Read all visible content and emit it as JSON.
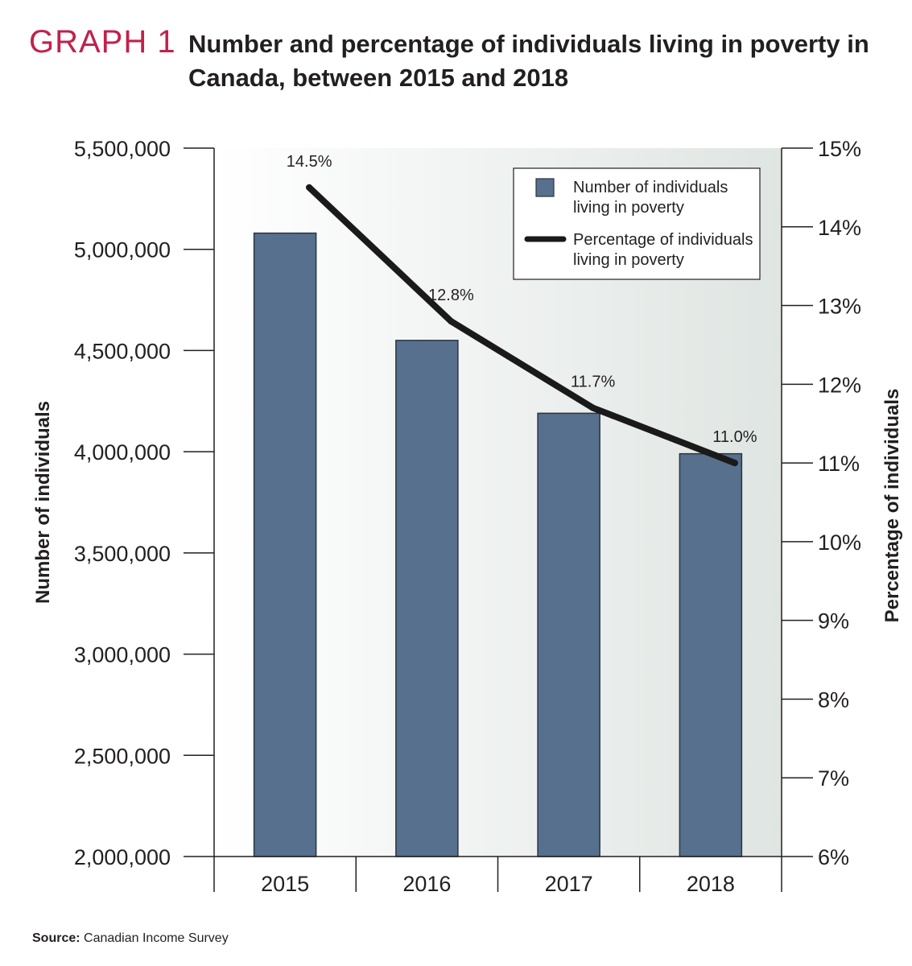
{
  "header": {
    "graph_label": "GRAPH 1",
    "title": "Number and percentage of individuals living in poverty in Canada, between 2015 and 2018"
  },
  "footer": {
    "source_label": "Source:",
    "source_text": "Canadian Income Survey"
  },
  "colors": {
    "graph_label": "#c0224b",
    "bar_fill": "#57708e",
    "bar_stroke": "#2b3440",
    "line": "#1a1a1a",
    "plot_gradient_start": "#ffffff",
    "plot_gradient_end": "#dfe5e2",
    "axis": "#231f20"
  },
  "chart_data": {
    "type": "bar",
    "categories": [
      "2015",
      "2016",
      "2017",
      "2018"
    ],
    "series": [
      {
        "name": "Number of individuals living in poverty",
        "type": "bar",
        "axis": "left",
        "values": [
          5080000,
          4550000,
          4190000,
          3990000
        ]
      },
      {
        "name": "Percentage of individuals living in poverty",
        "type": "line",
        "axis": "right",
        "values": [
          14.5,
          12.8,
          11.7,
          11.0
        ],
        "data_labels": [
          "14.5%",
          "12.8%",
          "11.7%",
          "11.0%"
        ]
      }
    ],
    "ylabel": "Number of individuals",
    "y2label": "Percentage of individuals",
    "ylim": [
      2000000,
      5500000
    ],
    "y2lim": [
      6,
      15
    ],
    "yticks": [
      "2,000,000",
      "2,500,000",
      "3,000,000",
      "3,500,000",
      "4,000,000",
      "4,500,000",
      "5,000,000",
      "5,500,000"
    ],
    "ytick_values": [
      2000000,
      2500000,
      3000000,
      3500000,
      4000000,
      4500000,
      5000000,
      5500000
    ],
    "y2ticks": [
      "6%",
      "7%",
      "8%",
      "9%",
      "10%",
      "11%",
      "12%",
      "13%",
      "14%",
      "15%"
    ],
    "y2tick_values": [
      6,
      7,
      8,
      9,
      10,
      11,
      12,
      13,
      14,
      15
    ],
    "legend": {
      "position": "top-right",
      "entries": [
        [
          "Number of individuals",
          "living in poverty"
        ],
        [
          "Percentage of individuals",
          "living in poverty"
        ]
      ]
    },
    "grid": false
  }
}
